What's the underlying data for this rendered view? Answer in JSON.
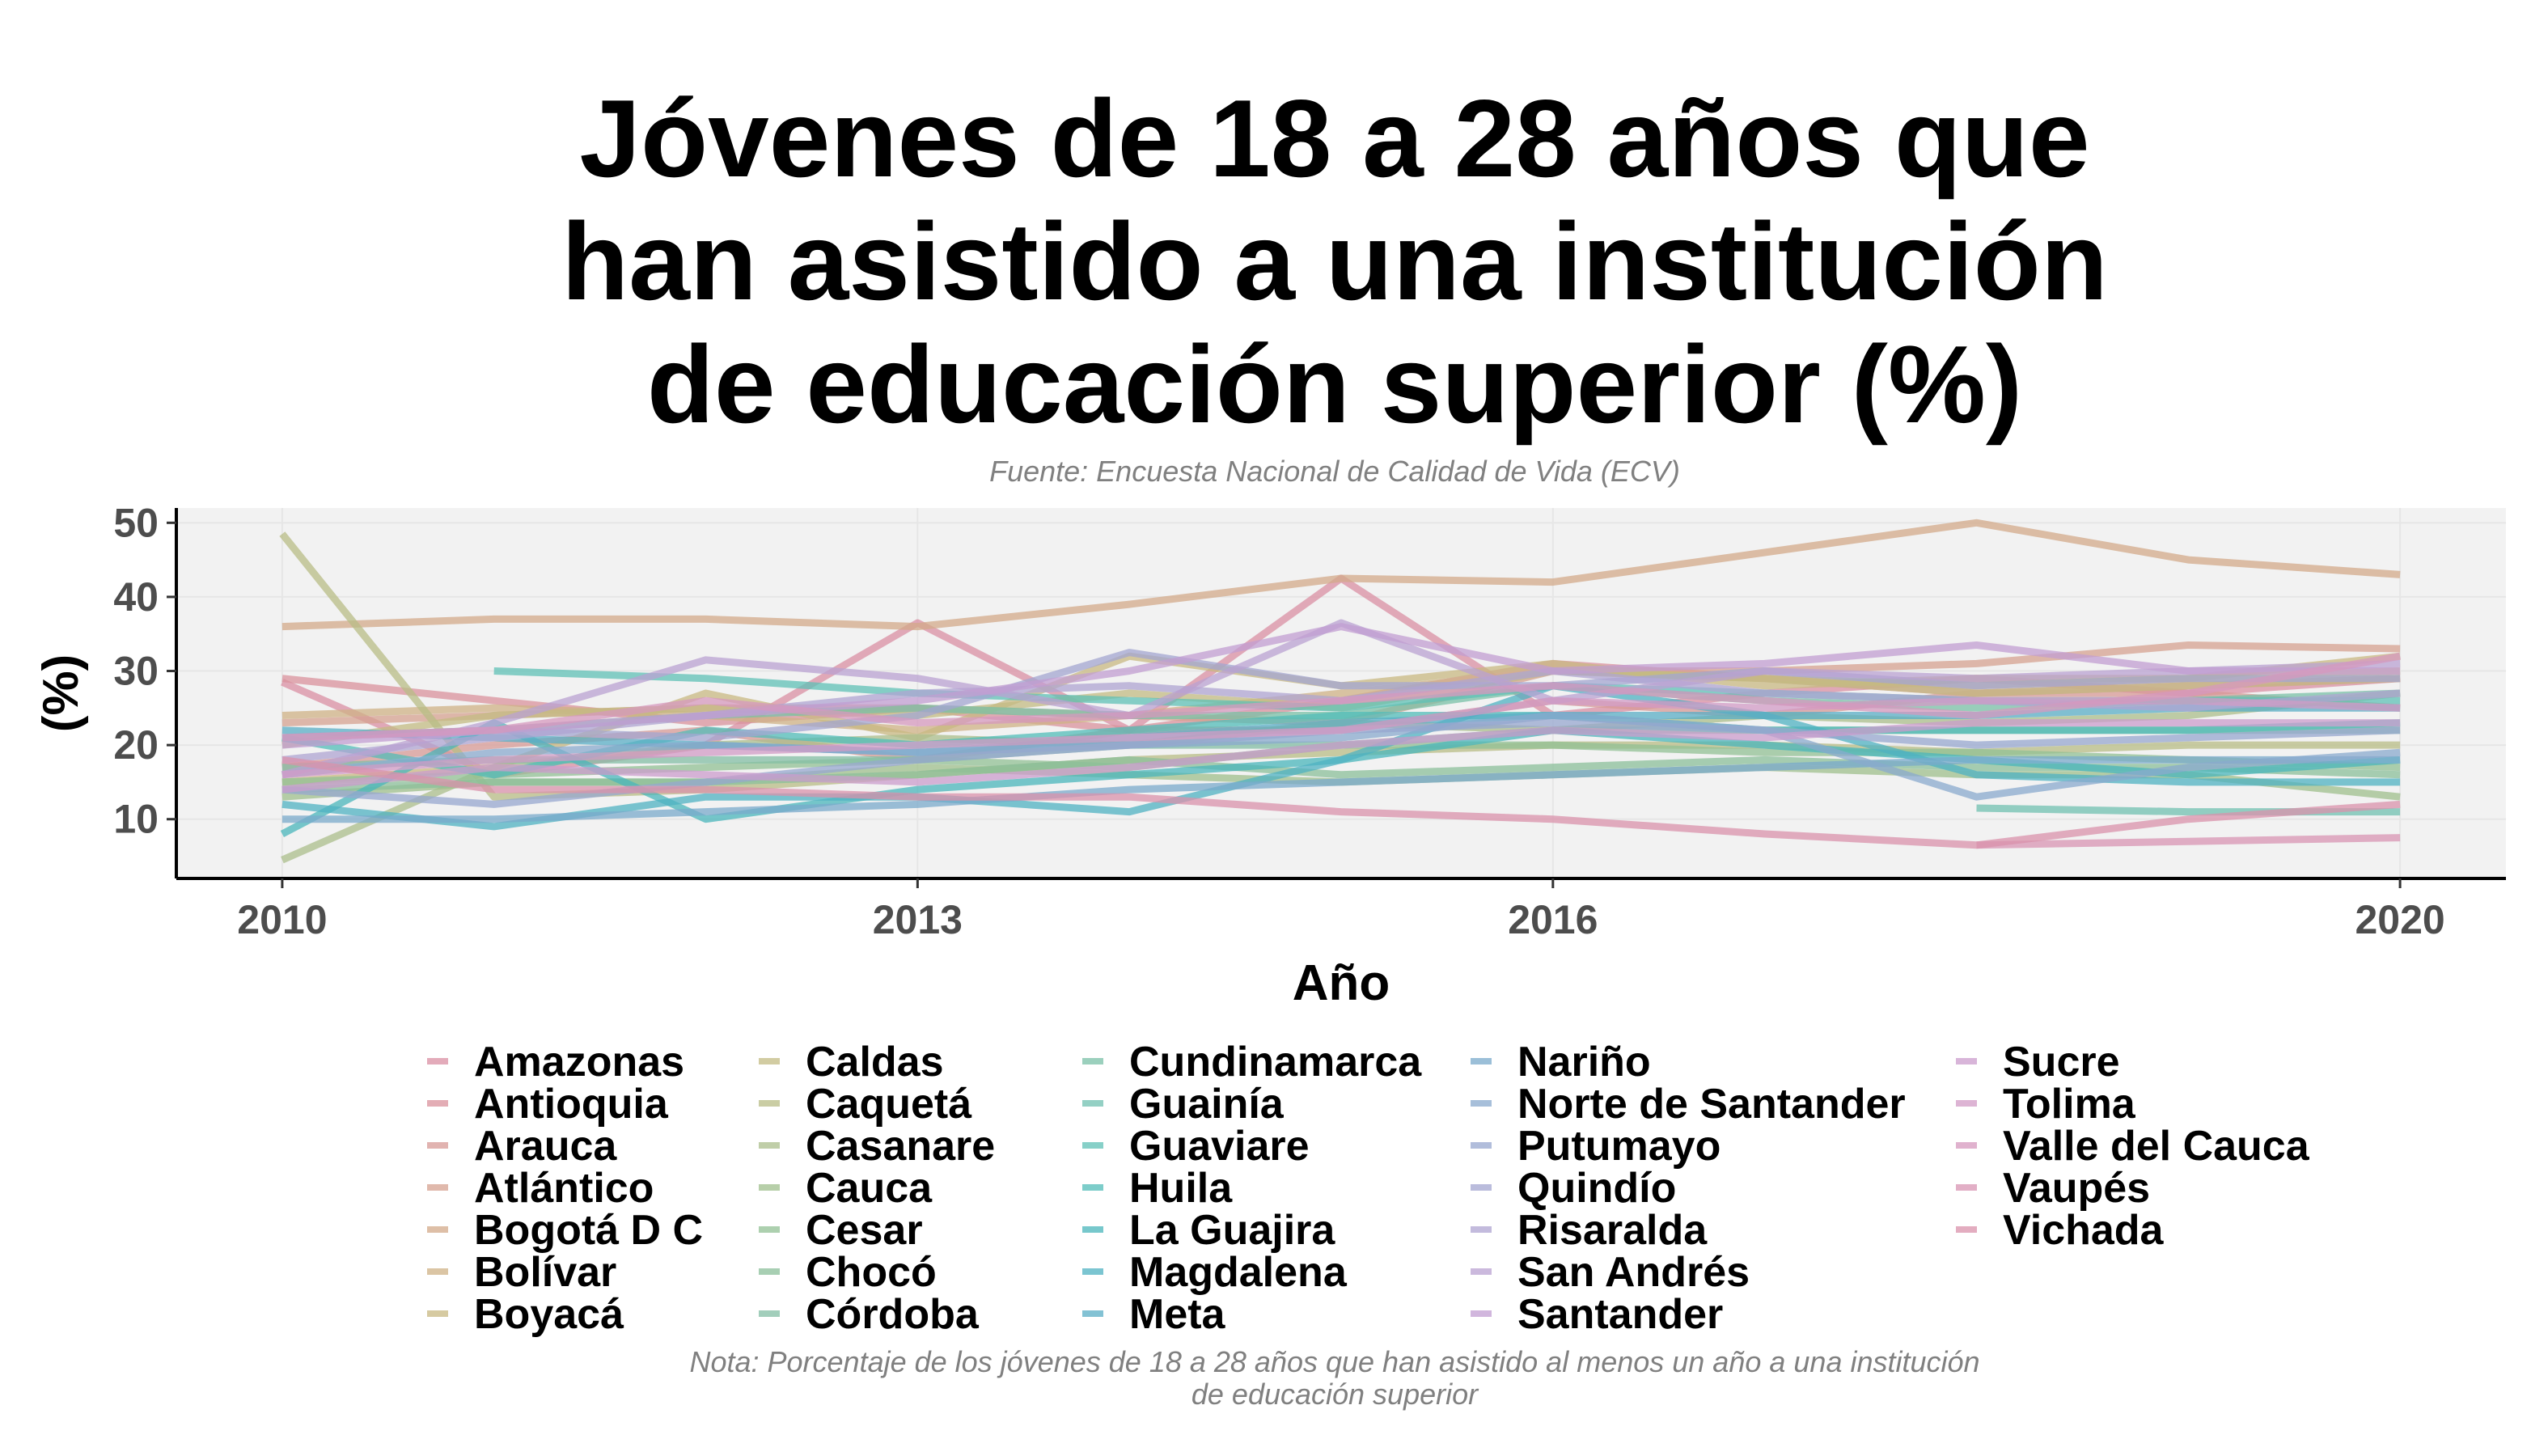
{
  "chart_data": {
    "type": "line",
    "title": "Jóvenes de 18 a 28 años que\nhan asistido a una institución\nde educación superior (%)",
    "subtitle": "Fuente: Encuesta Nacional de Calidad de Vida (ECV)",
    "note": "Nota: Porcentaje de los jóvenes de 18 a 28 años que han asistido al menos un año a una institución\nde educación superior",
    "xlabel": "Año",
    "ylabel": "(%)",
    "xlim": [
      2009.5,
      2020.5
    ],
    "ylim": [
      2,
      52
    ],
    "xticks": [
      2010,
      2013,
      2016,
      2020
    ],
    "yticks": [
      10,
      20,
      30,
      40,
      50
    ],
    "grid": true,
    "legend_position": "bottom",
    "x": [
      2010,
      2011,
      2012,
      2013,
      2014,
      2015,
      2016,
      2017,
      2018,
      2019,
      2020
    ],
    "series": [
      {
        "name": "Amazonas",
        "color": "#d98fa3",
        "values": [
          28.5,
          16,
          20,
          36.5,
          22,
          42.5,
          24,
          27,
          29,
          27,
          29
        ]
      },
      {
        "name": "Antioquia",
        "color": "#d9919c",
        "values": [
          29,
          26,
          23,
          25,
          22,
          26,
          31,
          29,
          27,
          28,
          29
        ]
      },
      {
        "name": "Arauca",
        "color": "#d79a95",
        "values": [
          17,
          20,
          22,
          18,
          22,
          22,
          26,
          24,
          27,
          27,
          25
        ]
      },
      {
        "name": "Atlántico",
        "color": "#d6a190",
        "values": [
          23,
          24,
          25,
          25,
          24,
          23,
          30,
          30,
          31,
          33.5,
          33
        ]
      },
      {
        "name": "Bogotá D C",
        "color": "#d3a98a",
        "values": [
          36,
          37,
          37,
          36,
          39,
          42.5,
          42,
          46,
          50,
          45,
          43
        ]
      },
      {
        "name": "Bolívar",
        "color": "#cfb185",
        "values": [
          24,
          25,
          24,
          22,
          24,
          27,
          30,
          29,
          28,
          29,
          30
        ]
      },
      {
        "name": "Boyacá",
        "color": "#c8b882",
        "values": [
          15,
          17,
          27,
          21,
          32,
          28,
          31,
          28,
          29,
          29,
          32
        ]
      },
      {
        "name": "Caldas",
        "color": "#c3bb83",
        "values": [
          20,
          24,
          25,
          24,
          27,
          25,
          30,
          29,
          27,
          28,
          29
        ]
      },
      {
        "name": "Caquetá",
        "color": "#b8bc86",
        "values": [
          48.5,
          13,
          14,
          16,
          18,
          19,
          20,
          20,
          19,
          20,
          20
        ]
      },
      {
        "name": "Casanare",
        "color": "#abbd8b",
        "values": [
          4.5,
          17,
          20,
          21,
          20,
          23,
          22,
          24,
          23,
          24,
          27
        ]
      },
      {
        "name": "Cauca",
        "color": "#9fbf8c",
        "values": [
          13,
          15,
          15,
          17,
          16,
          15,
          16,
          17,
          16,
          16,
          13
        ]
      },
      {
        "name": "Cesar",
        "color": "#92c094",
        "values": [
          15,
          16,
          17,
          18,
          17,
          20,
          20,
          19,
          19,
          18,
          17
        ]
      },
      {
        "name": "Chocó",
        "color": "#8bbf9a",
        "values": [
          14,
          15,
          15,
          16,
          18,
          16,
          17,
          18,
          17,
          17,
          16
        ]
      },
      {
        "name": "Córdoba",
        "color": "#83bea4",
        "values": [
          17,
          18,
          18,
          18,
          20,
          20,
          22,
          22,
          22,
          22,
          22
        ]
      },
      {
        "name": "Cundinamarca",
        "color": "#79c0a7",
        "values": [
          21,
          22,
          24,
          25,
          24,
          24,
          28,
          26,
          25,
          26,
          27
        ]
      },
      {
        "name": "Guainía",
        "color": "#70c0b0",
        "values": [
          null,
          null,
          null,
          null,
          null,
          null,
          null,
          null,
          11.5,
          11,
          11
        ]
      },
      {
        "name": "Guaviare",
        "color": "#5fc0b5",
        "values": [
          null,
          30,
          29,
          27,
          26,
          25,
          28,
          27,
          26,
          26,
          26
        ]
      },
      {
        "name": "Huila",
        "color": "#52bcb8",
        "values": [
          21,
          16,
          22,
          20,
          22,
          24,
          24,
          22,
          22,
          22,
          23
        ]
      },
      {
        "name": "La Guajira",
        "color": "#4ab6bb",
        "values": [
          8,
          23,
          10,
          14,
          16,
          18,
          22,
          20,
          18,
          16,
          18
        ]
      },
      {
        "name": "Magdalena",
        "color": "#4fb2c2",
        "values": [
          12,
          9,
          13,
          13,
          11,
          18,
          28,
          24,
          16,
          15,
          15
        ]
      },
      {
        "name": "Meta",
        "color": "#5aaec6",
        "values": [
          22,
          21,
          20,
          19,
          21,
          23,
          24,
          24,
          24,
          25,
          25
        ]
      },
      {
        "name": "Nariño",
        "color": "#79aacb",
        "values": [
          10,
          10,
          11,
          12,
          14,
          15,
          16,
          17,
          18,
          18,
          18
        ]
      },
      {
        "name": "Norte de Santander",
        "color": "#89a9cd",
        "values": [
          16,
          19,
          20,
          19,
          20,
          21,
          24,
          22,
          13,
          17,
          19
        ]
      },
      {
        "name": "Putumayo",
        "color": "#97a7cf",
        "values": [
          14,
          12,
          15,
          18,
          20,
          22,
          23,
          22,
          20,
          21,
          22
        ]
      },
      {
        "name": "Quindío",
        "color": "#a3a6d0",
        "values": [
          21,
          22,
          21,
          24,
          32.5,
          28,
          28,
          30,
          28,
          29,
          29
        ]
      },
      {
        "name": "Risaralda",
        "color": "#afa4d1",
        "values": [
          18,
          21,
          24,
          27,
          28,
          26,
          30,
          27,
          26,
          25,
          27
        ]
      },
      {
        "name": "San Andrés",
        "color": "#baa1d1",
        "values": [
          16,
          23,
          31.5,
          29,
          24,
          36.5,
          26,
          30,
          29,
          30,
          31
        ]
      },
      {
        "name": "Santander",
        "color": "#c29ed1",
        "values": [
          20,
          22,
          24,
          26,
          30,
          36,
          30,
          31,
          33.5,
          30,
          30
        ]
      },
      {
        "name": "Sucre",
        "color": "#cb9ccc",
        "values": [
          14,
          17,
          16,
          15,
          17,
          20,
          22,
          21,
          23,
          23,
          23
        ]
      },
      {
        "name": "Tolima",
        "color": "#d29bc5",
        "values": [
          16,
          18,
          19,
          20,
          21,
          22,
          26,
          25,
          26,
          26,
          25
        ]
      },
      {
        "name": "Valle del Cauca",
        "color": "#d698bd",
        "values": [
          21,
          22,
          26,
          23,
          24,
          26,
          28,
          26,
          24,
          27,
          32
        ]
      },
      {
        "name": "Vaupés",
        "color": "#d894b3",
        "values": [
          null,
          null,
          null,
          null,
          null,
          null,
          null,
          null,
          6.5,
          7,
          7.5
        ]
      },
      {
        "name": "Vichada",
        "color": "#d991ab",
        "values": [
          18,
          14,
          14,
          13,
          13,
          11,
          10,
          8,
          6.5,
          10,
          12
        ]
      }
    ]
  }
}
